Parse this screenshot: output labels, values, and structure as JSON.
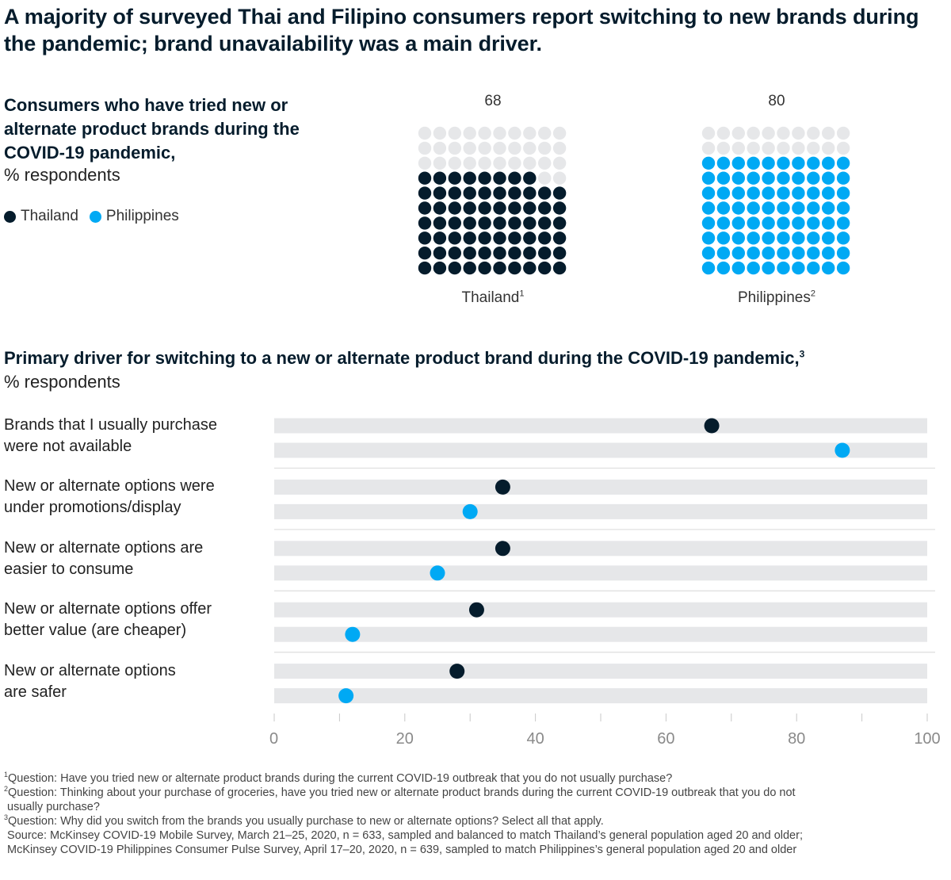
{
  "title": "A majority of surveyed Thai and Filipino consumers report switching to new brands during the pandemic; brand unavailability was a main driver.",
  "colors": {
    "thailand": "#051c2c",
    "philippines": "#00a9f4",
    "empty": "#e6e7e9",
    "bar_bg": "#e6e7e9",
    "separator": "#e0e0e0",
    "axis_text": "#8a8a8a"
  },
  "section1": {
    "title": "Consumers who have tried new or alternate product brands during the COVID-19 pandemic,",
    "unit": "% respondents",
    "legend": [
      {
        "label": "Thailand",
        "color": "#051c2c"
      },
      {
        "label": "Philippines",
        "color": "#00a9f4"
      }
    ]
  },
  "section2": {
    "title": "Primary driver for switching to a new or alternate product brand during the COVID-19 pandemic,",
    "title_sup": "3",
    "unit": "% respondents"
  },
  "chart_data": [
    {
      "type": "waffle",
      "title": "Consumers who have tried new or alternate product brands during the COVID-19 pandemic, % respondents",
      "grid": "10x10",
      "series": [
        {
          "name": "Thailand",
          "footnote": "1",
          "value": 68,
          "value_label": "68",
          "color": "#051c2c"
        },
        {
          "name": "Philippines",
          "footnote": "2",
          "value": 80,
          "value_label": "80",
          "color": "#00a9f4"
        }
      ]
    },
    {
      "type": "dot-bar",
      "title": "Primary driver for switching to a new or alternate product brand during the COVID-19 pandemic, % respondents",
      "categories": [
        "Brands that I usually purchase were not available",
        "New or alternate options were under promotions/display",
        "New or alternate options are easier to consume",
        "New or alternate options offer better value (are cheaper)",
        "New or alternate options are safer"
      ],
      "category_lines": [
        [
          "Brands that I usually purchase",
          "were not available"
        ],
        [
          "New or alternate options were",
          "under promotions/display"
        ],
        [
          "New or alternate options are",
          "easier to consume"
        ],
        [
          "New or alternate options offer",
          "better value (are cheaper)"
        ],
        [
          "New or alternate options",
          "are safer"
        ]
      ],
      "series": [
        {
          "name": "Thailand",
          "color": "#051c2c",
          "values": [
            67,
            35,
            35,
            31,
            28
          ]
        },
        {
          "name": "Philippines",
          "color": "#00a9f4",
          "values": [
            87,
            30,
            25,
            12,
            11
          ]
        }
      ],
      "xlim": [
        0,
        100
      ],
      "xticks": [
        0,
        20,
        40,
        60,
        80,
        100
      ],
      "minor_ticks": [
        10,
        30,
        50,
        70,
        90
      ],
      "xlabel": "",
      "ylabel": ""
    }
  ],
  "footnotes": [
    {
      "sup": "1",
      "text": "Question: Have you tried new or alternate product brands during the current COVID-19 outbreak that you do not usually purchase?"
    },
    {
      "sup": "2",
      "text": "Question: Thinking about your purchase of groceries, have you tried new or alternate product brands during the current COVID-19 outbreak that you do not\n usually purchase?"
    },
    {
      "sup": "3",
      "text": "Question: Why did you switch from the brands you usually purchase to new or alternate options? Select all that apply."
    },
    {
      "sup": "",
      "text": " Source: McKinsey COVID-19 Mobile Survey, March 21–25, 2020, n = 633, sampled and balanced to match Thailand’s general population aged 20 and older;\n McKinsey COVID-19 Philippines Consumer Pulse Survey, April 17–20, 2020, n = 639, sampled to match Philippines’s general population aged 20 and older"
    }
  ]
}
